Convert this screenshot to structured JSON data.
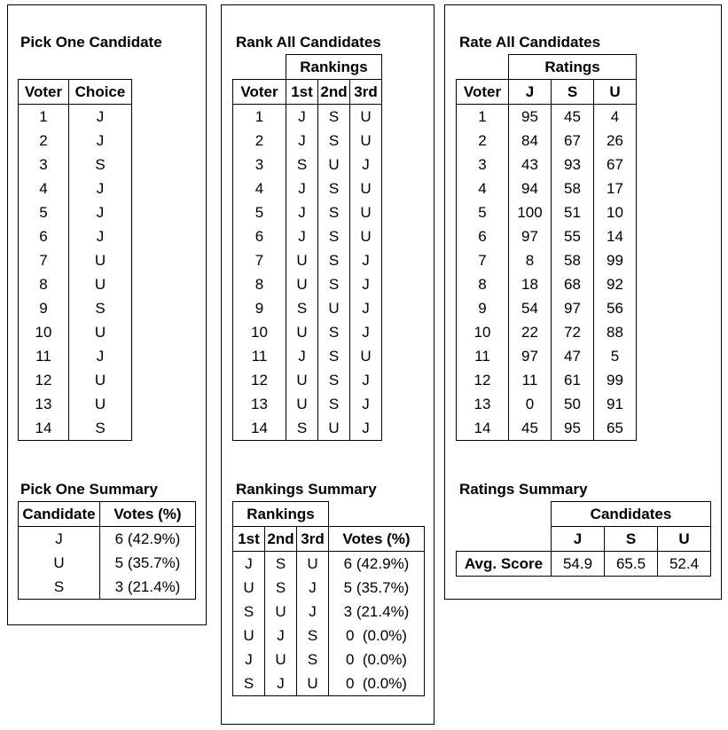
{
  "pick_one": {
    "title": "Pick One Candidate",
    "headers": [
      "Voter",
      "Choice"
    ],
    "rows": [
      [
        "1",
        "J"
      ],
      [
        "2",
        "J"
      ],
      [
        "3",
        "S"
      ],
      [
        "4",
        "J"
      ],
      [
        "5",
        "J"
      ],
      [
        "6",
        "J"
      ],
      [
        "7",
        "U"
      ],
      [
        "8",
        "U"
      ],
      [
        "9",
        "S"
      ],
      [
        "10",
        "U"
      ],
      [
        "11",
        "J"
      ],
      [
        "12",
        "U"
      ],
      [
        "13",
        "U"
      ],
      [
        "14",
        "S"
      ]
    ],
    "summary_title": "Pick One Summary",
    "summary_headers": [
      "Candidate",
      "Votes (%)"
    ],
    "summary_rows": [
      [
        "J",
        "6 (42.9%)"
      ],
      [
        "U",
        "5 (35.7%)"
      ],
      [
        "S",
        "3 (21.4%)"
      ]
    ]
  },
  "rank_all": {
    "title": "Rank All Candidates",
    "group_header": "Rankings",
    "headers": [
      "Voter",
      "1st",
      "2nd",
      "3rd"
    ],
    "rows": [
      [
        "1",
        "J",
        "S",
        "U"
      ],
      [
        "2",
        "J",
        "S",
        "U"
      ],
      [
        "3",
        "S",
        "U",
        "J"
      ],
      [
        "4",
        "J",
        "S",
        "U"
      ],
      [
        "5",
        "J",
        "S",
        "U"
      ],
      [
        "6",
        "J",
        "S",
        "U"
      ],
      [
        "7",
        "U",
        "S",
        "J"
      ],
      [
        "8",
        "U",
        "S",
        "J"
      ],
      [
        "9",
        "S",
        "U",
        "J"
      ],
      [
        "10",
        "U",
        "S",
        "J"
      ],
      [
        "11",
        "J",
        "S",
        "U"
      ],
      [
        "12",
        "U",
        "S",
        "J"
      ],
      [
        "13",
        "U",
        "S",
        "J"
      ],
      [
        "14",
        "S",
        "U",
        "J"
      ]
    ],
    "summary_title": "Rankings Summary",
    "summary_group_header": "Rankings",
    "summary_headers": [
      "1st",
      "2nd",
      "3rd",
      "Votes (%)"
    ],
    "summary_rows": [
      [
        "J",
        "S",
        "U",
        "6 (42.9%)"
      ],
      [
        "U",
        "S",
        "J",
        "5 (35.7%)"
      ],
      [
        "S",
        "U",
        "J",
        "3 (21.4%)"
      ],
      [
        "U",
        "J",
        "S",
        "0  (0.0%)"
      ],
      [
        "J",
        "U",
        "S",
        "0  (0.0%)"
      ],
      [
        "S",
        "J",
        "U",
        "0  (0.0%)"
      ]
    ]
  },
  "rate_all": {
    "title": "Rate All Candidates",
    "group_header": "Ratings",
    "headers": [
      "Voter",
      "J",
      "S",
      "U"
    ],
    "rows": [
      [
        "1",
        "95",
        "45",
        "4"
      ],
      [
        "2",
        "84",
        "67",
        "26"
      ],
      [
        "3",
        "43",
        "93",
        "67"
      ],
      [
        "4",
        "94",
        "58",
        "17"
      ],
      [
        "5",
        "100",
        "51",
        "10"
      ],
      [
        "6",
        "97",
        "55",
        "14"
      ],
      [
        "7",
        "8",
        "58",
        "99"
      ],
      [
        "8",
        "18",
        "68",
        "92"
      ],
      [
        "9",
        "54",
        "97",
        "56"
      ],
      [
        "10",
        "22",
        "72",
        "88"
      ],
      [
        "11",
        "97",
        "47",
        "5"
      ],
      [
        "12",
        "11",
        "61",
        "99"
      ],
      [
        "13",
        "0",
        "50",
        "91"
      ],
      [
        "14",
        "45",
        "95",
        "65"
      ]
    ],
    "summary_title": "Ratings Summary",
    "summary_group_header": "Candidates",
    "summary_headers": [
      "J",
      "S",
      "U"
    ],
    "summary_row_label": "Avg. Score",
    "summary_values": [
      "54.9",
      "65.5",
      "52.4"
    ]
  }
}
